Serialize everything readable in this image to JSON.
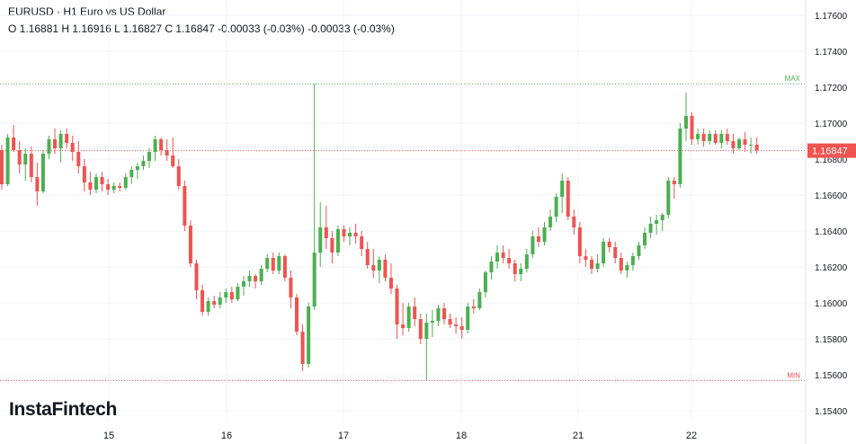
{
  "header": {
    "symbol": "EURUSD",
    "separator": "·",
    "description": "H1 Euro vs US Dollar",
    "ohlc_line": "O 1.16881 H 1.16916 L 1.16827 C 1.16847 -0.00033 (-0.03%) -0.00033 (-0.03%)"
  },
  "brand": {
    "name": "InstaFintech"
  },
  "colors": {
    "up": "#26a69a",
    "up_bright": "#4caf50",
    "down": "#ef5350",
    "grid": "#f0f3fa",
    "axis_text": "#131722",
    "price_tag": "#ef5350"
  },
  "chart_data": {
    "type": "candlestick",
    "title": "EURUSD · H1 Euro vs US Dollar",
    "x_ticks": [
      "15",
      "16",
      "17",
      "18",
      "21",
      "22"
    ],
    "y_ticks": [
      "1.17600",
      "1.17400",
      "1.17200",
      "1.17000",
      "1.16800",
      "1.16600",
      "1.16400",
      "1.16200",
      "1.16000",
      "1.15800",
      "1.15600",
      "1.15400"
    ],
    "y_tick_values": [
      1.176,
      1.174,
      1.172,
      1.17,
      1.168,
      1.166,
      1.164,
      1.162,
      1.16,
      1.158,
      1.156,
      1.154
    ],
    "ylim": [
      1.1535,
      1.1775
    ],
    "max_label": "MAX",
    "min_label": "MIN",
    "max_value": 1.17219,
    "min_value": 1.15568,
    "last_price": 1.16847,
    "last_price_label": "1.16847",
    "grid": true,
    "candles": [
      [
        1.1685,
        1.1688,
        1.1663,
        1.1666
      ],
      [
        1.1666,
        1.1694,
        1.1665,
        1.1692
      ],
      [
        1.1692,
        1.1699,
        1.1684,
        1.1685
      ],
      [
        1.1685,
        1.169,
        1.1672,
        1.1677
      ],
      [
        1.1677,
        1.1686,
        1.1668,
        1.1683
      ],
      [
        1.1683,
        1.1687,
        1.1667,
        1.167
      ],
      [
        1.167,
        1.1678,
        1.1654,
        1.1662
      ],
      [
        1.1662,
        1.1685,
        1.1661,
        1.1683
      ],
      [
        1.1683,
        1.1693,
        1.168,
        1.1691
      ],
      [
        1.1691,
        1.1697,
        1.1683,
        1.1686
      ],
      [
        1.1686,
        1.1696,
        1.1678,
        1.1694
      ],
      [
        1.1694,
        1.1697,
        1.1686,
        1.1689
      ],
      [
        1.1689,
        1.1693,
        1.1679,
        1.1684
      ],
      [
        1.1684,
        1.169,
        1.1672,
        1.1676
      ],
      [
        1.1676,
        1.168,
        1.1662,
        1.1667
      ],
      [
        1.1667,
        1.1673,
        1.166,
        1.1663
      ],
      [
        1.1663,
        1.1672,
        1.1661,
        1.167
      ],
      [
        1.167,
        1.1673,
        1.1662,
        1.1666
      ],
      [
        1.1666,
        1.1669,
        1.166,
        1.1663
      ],
      [
        1.1663,
        1.1667,
        1.1661,
        1.1665
      ],
      [
        1.1665,
        1.1667,
        1.1662,
        1.1664
      ],
      [
        1.1664,
        1.1672,
        1.1663,
        1.167
      ],
      [
        1.167,
        1.1676,
        1.1666,
        1.1674
      ],
      [
        1.1674,
        1.1678,
        1.1669,
        1.1676
      ],
      [
        1.1676,
        1.1682,
        1.1674,
        1.1679
      ],
      [
        1.1679,
        1.1686,
        1.1675,
        1.1684
      ],
      [
        1.1684,
        1.1693,
        1.1679,
        1.1691
      ],
      [
        1.1691,
        1.1692,
        1.1682,
        1.1685
      ],
      [
        1.1685,
        1.1691,
        1.1679,
        1.1682
      ],
      [
        1.1682,
        1.1692,
        1.1675,
        1.1676
      ],
      [
        1.1676,
        1.168,
        1.1663,
        1.1665
      ],
      [
        1.1665,
        1.1668,
        1.164,
        1.1643
      ],
      [
        1.1643,
        1.1646,
        1.162,
        1.1622
      ],
      [
        1.1622,
        1.1624,
        1.1602,
        1.1607
      ],
      [
        1.1607,
        1.161,
        1.1593,
        1.1595
      ],
      [
        1.1595,
        1.1603,
        1.1593,
        1.1601
      ],
      [
        1.1601,
        1.1604,
        1.1597,
        1.1599
      ],
      [
        1.1599,
        1.1606,
        1.1597,
        1.1603
      ],
      [
        1.1603,
        1.1608,
        1.16,
        1.1606
      ],
      [
        1.1606,
        1.1609,
        1.16,
        1.1602
      ],
      [
        1.1602,
        1.1611,
        1.1601,
        1.1609
      ],
      [
        1.1609,
        1.1615,
        1.1604,
        1.1612
      ],
      [
        1.1612,
        1.1618,
        1.1609,
        1.1615
      ],
      [
        1.1615,
        1.1616,
        1.1608,
        1.1612
      ],
      [
        1.1612,
        1.1621,
        1.161,
        1.1619
      ],
      [
        1.1619,
        1.1627,
        1.1617,
        1.1625
      ],
      [
        1.1625,
        1.1628,
        1.1616,
        1.1618
      ],
      [
        1.1618,
        1.1628,
        1.1616,
        1.1626
      ],
      [
        1.1626,
        1.1627,
        1.1612,
        1.1614
      ],
      [
        1.1614,
        1.1618,
        1.1597,
        1.1603
      ],
      [
        1.1603,
        1.1605,
        1.1582,
        1.1584
      ],
      [
        1.1584,
        1.1588,
        1.1562,
        1.1566
      ],
      [
        1.1566,
        1.16,
        1.1564,
        1.1598
      ],
      [
        1.1598,
        1.1722,
        1.1596,
        1.1628
      ],
      [
        1.1628,
        1.1656,
        1.162,
        1.1642
      ],
      [
        1.1642,
        1.1654,
        1.163,
        1.1636
      ],
      [
        1.1636,
        1.164,
        1.1622,
        1.1628
      ],
      [
        1.1628,
        1.1643,
        1.1626,
        1.1641
      ],
      [
        1.1641,
        1.1643,
        1.1634,
        1.1637
      ],
      [
        1.1637,
        1.1642,
        1.1632,
        1.1639
      ],
      [
        1.1639,
        1.1644,
        1.1633,
        1.1637
      ],
      [
        1.1637,
        1.164,
        1.1626,
        1.163
      ],
      [
        1.163,
        1.1634,
        1.1619,
        1.1621
      ],
      [
        1.1621,
        1.163,
        1.1614,
        1.1618
      ],
      [
        1.1618,
        1.1626,
        1.1611,
        1.1624
      ],
      [
        1.1624,
        1.1627,
        1.1612,
        1.1614
      ],
      [
        1.1614,
        1.1622,
        1.1605,
        1.1608
      ],
      [
        1.1608,
        1.161,
        1.158,
        1.1588
      ],
      [
        1.1588,
        1.16,
        1.1582,
        1.1586
      ],
      [
        1.1586,
        1.16,
        1.1584,
        1.1598
      ],
      [
        1.1598,
        1.1603,
        1.1587,
        1.1591
      ],
      [
        1.1591,
        1.1594,
        1.1577,
        1.158
      ],
      [
        1.158,
        1.1594,
        1.1557,
        1.1589
      ],
      [
        1.1589,
        1.1596,
        1.1581,
        1.159
      ],
      [
        1.159,
        1.1599,
        1.1587,
        1.1597
      ],
      [
        1.1597,
        1.16,
        1.1588,
        1.1591
      ],
      [
        1.1591,
        1.1594,
        1.1586,
        1.1588
      ],
      [
        1.1588,
        1.1592,
        1.1583,
        1.1587
      ],
      [
        1.1587,
        1.1592,
        1.158,
        1.1585
      ],
      [
        1.1585,
        1.16,
        1.1583,
        1.1598
      ],
      [
        1.1598,
        1.1602,
        1.1594,
        1.1597
      ],
      [
        1.1597,
        1.1608,
        1.1596,
        1.1606
      ],
      [
        1.1606,
        1.1618,
        1.1603,
        1.1617
      ],
      [
        1.1617,
        1.1626,
        1.1613,
        1.1623
      ],
      [
        1.1623,
        1.1632,
        1.1619,
        1.1628
      ],
      [
        1.1628,
        1.1632,
        1.1622,
        1.1625
      ],
      [
        1.1625,
        1.163,
        1.1619,
        1.1622
      ],
      [
        1.1622,
        1.1624,
        1.1612,
        1.1616
      ],
      [
        1.1616,
        1.1622,
        1.1612,
        1.1619
      ],
      [
        1.1619,
        1.163,
        1.1617,
        1.1627
      ],
      [
        1.1627,
        1.164,
        1.1625,
        1.1637
      ],
      [
        1.1637,
        1.1642,
        1.1631,
        1.1634
      ],
      [
        1.1634,
        1.1645,
        1.1632,
        1.1642
      ],
      [
        1.1642,
        1.1652,
        1.164,
        1.1648
      ],
      [
        1.1648,
        1.1661,
        1.1645,
        1.1659
      ],
      [
        1.1659,
        1.1672,
        1.165,
        1.1668
      ],
      [
        1.1668,
        1.167,
        1.1646,
        1.1648
      ],
      [
        1.1648,
        1.1652,
        1.1638,
        1.1642
      ],
      [
        1.1642,
        1.1645,
        1.1622,
        1.1626
      ],
      [
        1.1626,
        1.163,
        1.162,
        1.1624
      ],
      [
        1.1624,
        1.1626,
        1.1616,
        1.1619
      ],
      [
        1.1619,
        1.1627,
        1.1617,
        1.1622
      ],
      [
        1.1622,
        1.1636,
        1.162,
        1.1634
      ],
      [
        1.1634,
        1.1636,
        1.1628,
        1.1631
      ],
      [
        1.1631,
        1.1634,
        1.1622,
        1.1625
      ],
      [
        1.1625,
        1.1628,
        1.1616,
        1.1618
      ],
      [
        1.1618,
        1.1623,
        1.1614,
        1.1621
      ],
      [
        1.1621,
        1.1628,
        1.1618,
        1.1626
      ],
      [
        1.1626,
        1.1634,
        1.1624,
        1.1632
      ],
      [
        1.1632,
        1.1642,
        1.163,
        1.1639
      ],
      [
        1.1639,
        1.1648,
        1.1636,
        1.1644
      ],
      [
        1.1644,
        1.1649,
        1.1638,
        1.1646
      ],
      [
        1.1646,
        1.165,
        1.164,
        1.1649
      ],
      [
        1.1649,
        1.167,
        1.1647,
        1.1668
      ],
      [
        1.1668,
        1.167,
        1.1658,
        1.1666
      ],
      [
        1.1666,
        1.17,
        1.1664,
        1.1697
      ],
      [
        1.1697,
        1.1717,
        1.169,
        1.1704
      ],
      [
        1.1704,
        1.1706,
        1.1688,
        1.1691
      ],
      [
        1.1691,
        1.1697,
        1.1688,
        1.1694
      ],
      [
        1.1694,
        1.1697,
        1.1687,
        1.169
      ],
      [
        1.169,
        1.1696,
        1.1688,
        1.1694
      ],
      [
        1.1694,
        1.1696,
        1.1688,
        1.1689
      ],
      [
        1.1689,
        1.1696,
        1.1686,
        1.1694
      ],
      [
        1.1694,
        1.1697,
        1.1688,
        1.169
      ],
      [
        1.169,
        1.1694,
        1.1683,
        1.1686
      ],
      [
        1.1686,
        1.1692,
        1.1685,
        1.1691
      ],
      [
        1.1691,
        1.1695,
        1.1684,
        1.1688
      ],
      [
        1.1688,
        1.1692,
        1.1683,
        1.1688
      ],
      [
        1.1688,
        1.1692,
        1.1683,
        1.1685
      ]
    ]
  }
}
